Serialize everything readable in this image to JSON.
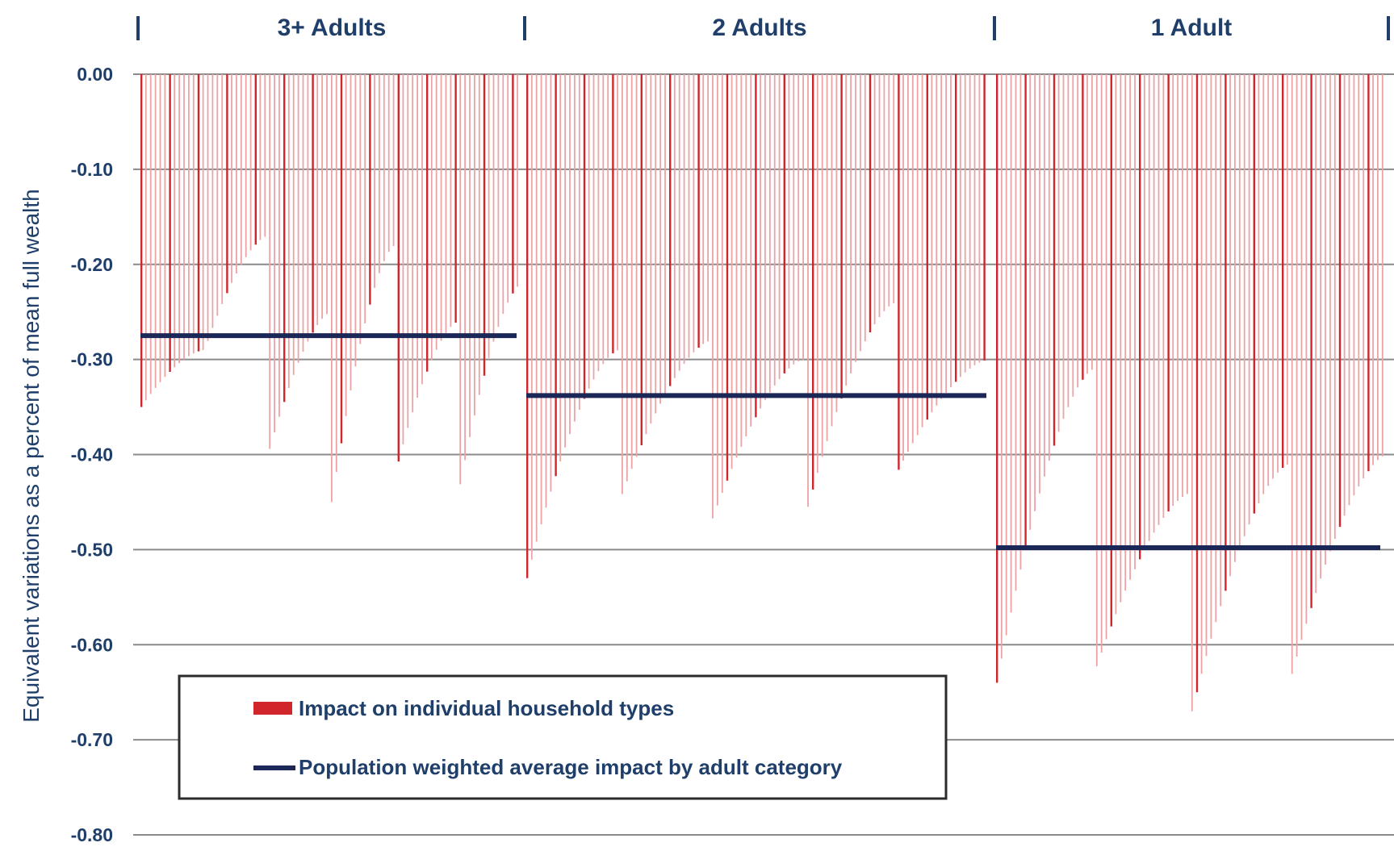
{
  "colors": {
    "bar": "#D0262B",
    "bar_light": "#ECA3A5",
    "average_line": "#1B2757",
    "text": "#1F3F6A",
    "gridline": "#8A8A8A",
    "legend_border": "#2B2B2B"
  },
  "chart_data": {
    "type": "bar",
    "ylabel": "Equivalent variations as a percent of mean full wealth",
    "ylim": [
      -0.8,
      0.0
    ],
    "yticks": [
      0.0,
      -0.1,
      -0.2,
      -0.3,
      -0.4,
      -0.5,
      -0.6,
      -0.7,
      -0.8
    ],
    "ytick_labels": [
      "0.00",
      "-0.10",
      "-0.20",
      "-0.30",
      "-0.40",
      "-0.50",
      "-0.60",
      "-0.70",
      "-0.80"
    ],
    "grid": true,
    "legend_position": "bottom-left",
    "legend": [
      {
        "label": "Impact on individual household types",
        "kind": "bar"
      },
      {
        "label": "Population weighted average impact by adult category",
        "kind": "line"
      }
    ],
    "groups": [
      {
        "label": "3+ Adults",
        "average": -0.275,
        "runs": [
          {
            "start": -0.35,
            "end": -0.29
          },
          {
            "start": -0.29,
            "end": -0.17
          },
          {
            "start": -0.4,
            "end": -0.25
          },
          {
            "start": -0.45,
            "end": -0.18
          },
          {
            "start": -0.42,
            "end": -0.26
          },
          {
            "start": -0.44,
            "end": -0.22
          }
        ]
      },
      {
        "label": "2 Adults",
        "average": -0.338,
        "runs": [
          {
            "start": -0.53,
            "end": -0.29
          },
          {
            "start": -0.45,
            "end": -0.28
          },
          {
            "start": -0.47,
            "end": -0.3
          },
          {
            "start": -0.47,
            "end": -0.24
          },
          {
            "start": -0.42,
            "end": -0.3
          }
        ]
      },
      {
        "label": "1 Adult",
        "average": -0.498,
        "runs": [
          {
            "start": -0.64,
            "end": -0.31
          },
          {
            "start": -0.63,
            "end": -0.44
          },
          {
            "start": -0.67,
            "end": -0.41
          },
          {
            "start": -0.64,
            "end": -0.4
          }
        ]
      }
    ]
  }
}
